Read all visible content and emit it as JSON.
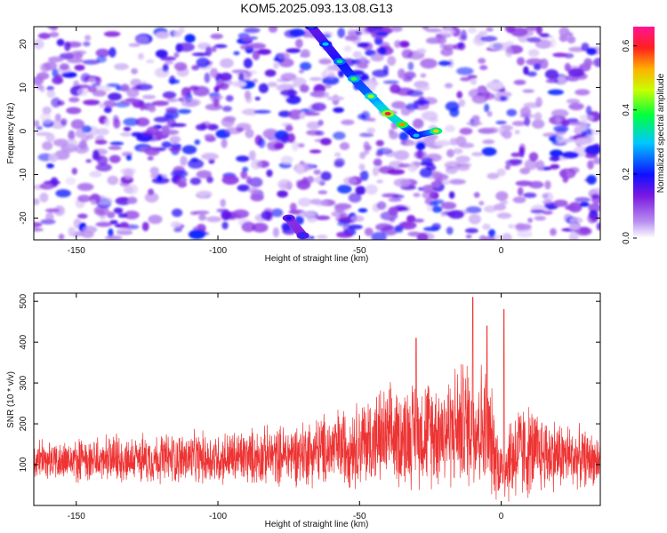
{
  "title": "KOM5.2025.093.13.08.G13",
  "chart_data": [
    {
      "type": "heatmap",
      "xlabel": "Height of straight line (km)",
      "ylabel": "Frequency (Hz)",
      "xlim": [
        -165,
        35
      ],
      "ylim": [
        -25,
        24
      ],
      "xticks": [
        -150,
        -100,
        -50,
        0
      ],
      "yticks": [
        -20,
        -10,
        0,
        10,
        20
      ],
      "colorbar": {
        "label": "Normalized spectral amplitude",
        "range": [
          0.0,
          0.66
        ],
        "ticks": [
          0.0,
          0.2,
          0.4,
          0.6
        ],
        "colormap": [
          "#ffffff",
          "#8a2be2",
          "#0000ff",
          "#00ffff",
          "#00ff00",
          "#ffff00",
          "#ff0000",
          "#ff1493"
        ]
      },
      "ridge": {
        "description_points": [
          {
            "x": -67,
            "y": 24,
            "value": 0.25
          },
          {
            "x": -62,
            "y": 20,
            "value": 0.3
          },
          {
            "x": -57,
            "y": 16,
            "value": 0.35
          },
          {
            "x": -52,
            "y": 12,
            "value": 0.4
          },
          {
            "x": -46,
            "y": 8,
            "value": 0.45
          },
          {
            "x": -40,
            "y": 4,
            "value": 0.62
          },
          {
            "x": -35,
            "y": 1.5,
            "value": 0.55
          },
          {
            "x": -30,
            "y": -1,
            "value": 0.3
          },
          {
            "x": -23,
            "y": 0,
            "value": 0.5
          },
          {
            "x": -75,
            "y": -20,
            "value": 0.2
          },
          {
            "x": -70,
            "y": -24,
            "value": 0.22
          }
        ]
      }
    },
    {
      "type": "line",
      "xlabel": "Height of straight line (km)",
      "ylabel": "SNR (10 * v/v)",
      "xlim": [
        -165,
        35
      ],
      "ylim": [
        0,
        520
      ],
      "xticks": [
        -150,
        -100,
        -50,
        0
      ],
      "yticks": [
        100,
        200,
        300,
        400,
        500
      ],
      "series": [
        {
          "color": "#ee3333",
          "envelope": [
            {
              "x": -165,
              "base": 105,
              "amp": 75
            },
            {
              "x": -140,
              "base": 105,
              "amp": 85
            },
            {
              "x": -120,
              "base": 110,
              "amp": 95
            },
            {
              "x": -100,
              "base": 110,
              "amp": 100
            },
            {
              "x": -80,
              "base": 115,
              "amp": 110
            },
            {
              "x": -60,
              "base": 130,
              "amp": 140
            },
            {
              "x": -45,
              "base": 150,
              "amp": 180
            },
            {
              "x": -30,
              "base": 165,
              "amp": 200
            },
            {
              "x": -18,
              "base": 175,
              "amp": 220
            },
            {
              "x": -10,
              "base": 190,
              "amp": 260
            },
            {
              "x": -5,
              "base": 170,
              "amp": 240
            },
            {
              "x": 0,
              "base": 80,
              "amp": 120
            },
            {
              "x": 5,
              "base": 120,
              "amp": 200
            },
            {
              "x": 15,
              "base": 120,
              "amp": 150
            },
            {
              "x": 35,
              "base": 105,
              "amp": 90
            }
          ],
          "peaks": [
            {
              "x": -10,
              "y": 510
            },
            {
              "x": 1,
              "y": 480
            },
            {
              "x": -5,
              "y": 440
            },
            {
              "x": -30,
              "y": 410
            }
          ]
        }
      ]
    }
  ]
}
